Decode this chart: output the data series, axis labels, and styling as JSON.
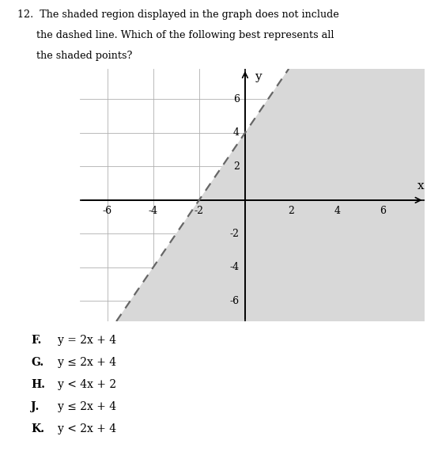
{
  "title_line1": "12.  The shaded region displayed in the graph does not include",
  "title_line2": "      the dashed line. Which of the following best represents all",
  "title_line3": "      the shaded points?",
  "xlim": [
    -7.2,
    7.8
  ],
  "ylim": [
    -7.2,
    7.8
  ],
  "xticks": [
    -6,
    -4,
    -2,
    2,
    4,
    6
  ],
  "yticks": [
    -6,
    -4,
    -2,
    2,
    4,
    6
  ],
  "line_slope": 2,
  "line_intercept": 4,
  "shade_color": "#d8d8d8",
  "dashed_color": "#666666",
  "answer_choices": [
    [
      "F.",
      "y = 2x + 4"
    ],
    [
      "G.",
      "y ≤ 2x + 4"
    ],
    [
      "H.",
      "y < 4x + 2"
    ],
    [
      "J.",
      "y ≤ 2x + 4"
    ],
    [
      "K.",
      "y < 2x + 4"
    ]
  ],
  "figsize": [
    5.59,
    5.8
  ],
  "dpi": 100
}
